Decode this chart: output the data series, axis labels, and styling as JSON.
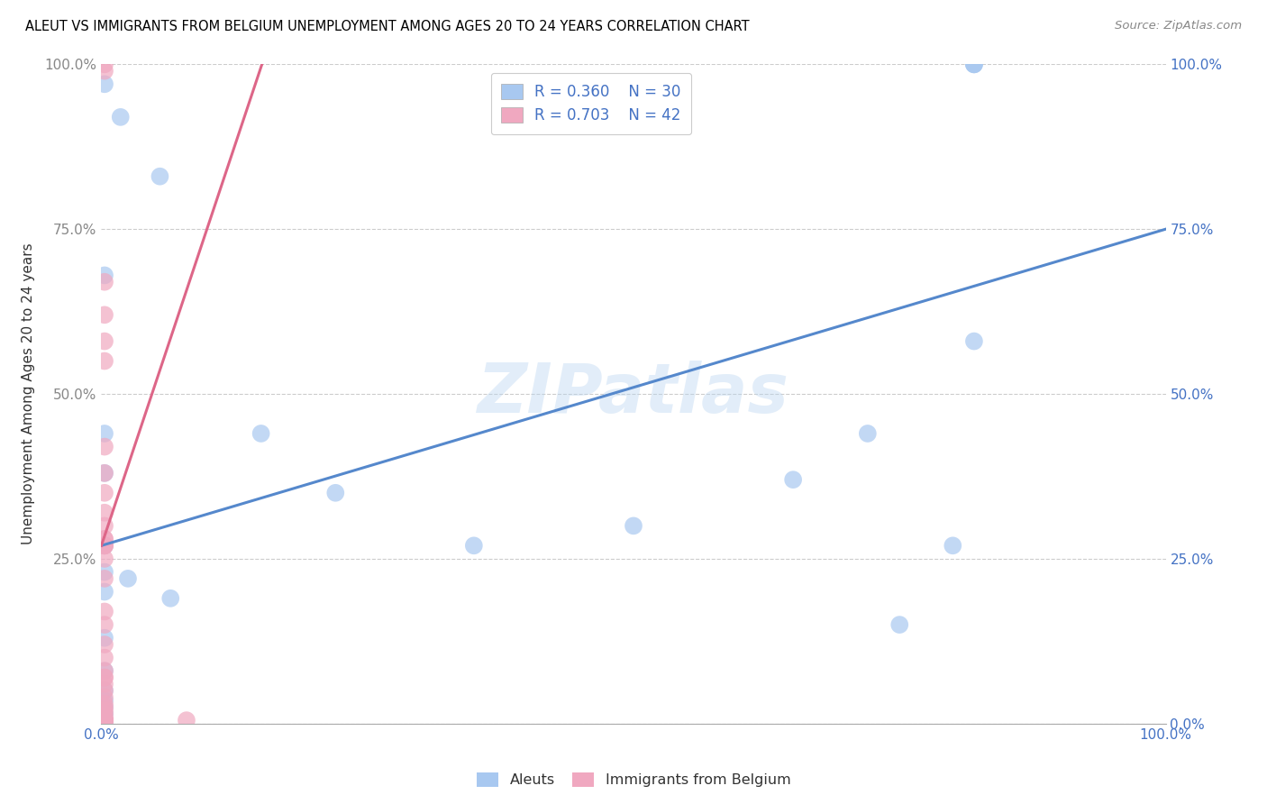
{
  "title": "ALEUT VS IMMIGRANTS FROM BELGIUM UNEMPLOYMENT AMONG AGES 20 TO 24 YEARS CORRELATION CHART",
  "source": "Source: ZipAtlas.com",
  "ylabel": "Unemployment Among Ages 20 to 24 years",
  "blue_R": "R = 0.360",
  "blue_N": "N = 30",
  "pink_R": "R = 0.703",
  "pink_N": "N = 42",
  "blue_color": "#A8C8F0",
  "pink_color": "#F0A8C0",
  "blue_line_color": "#5588CC",
  "pink_line_color": "#DD6688",
  "watermark": "ZIPatlas",
  "blue_scatter_x": [
    0.003,
    0.018,
    0.003,
    0.055,
    0.003,
    0.003,
    0.003,
    0.003,
    0.003,
    0.003,
    0.003,
    0.003,
    0.003,
    0.003,
    0.003,
    0.003,
    0.025,
    0.065,
    0.15,
    0.22,
    0.35,
    0.5,
    0.65,
    0.72,
    0.75,
    0.8,
    0.82,
    0.82,
    0.82,
    0.82
  ],
  "blue_scatter_y": [
    0.97,
    0.92,
    0.68,
    0.83,
    0.44,
    0.38,
    0.27,
    0.23,
    0.2,
    0.13,
    0.08,
    0.05,
    0.035,
    0.025,
    0.015,
    0.0,
    0.22,
    0.19,
    0.44,
    0.35,
    0.27,
    0.3,
    0.37,
    0.44,
    0.15,
    0.27,
    0.58,
    1.0,
    1.0,
    1.0
  ],
  "pink_scatter_x": [
    0.003,
    0.003,
    0.003,
    0.003,
    0.003,
    0.003,
    0.003,
    0.003,
    0.003,
    0.003,
    0.003,
    0.003,
    0.003,
    0.003,
    0.003,
    0.003,
    0.003,
    0.003,
    0.003,
    0.003,
    0.003,
    0.003,
    0.003,
    0.003,
    0.003,
    0.003,
    0.003,
    0.003,
    0.003,
    0.003,
    0.003,
    0.003,
    0.003,
    0.003,
    0.003,
    0.003,
    0.003,
    0.003,
    0.003,
    0.003,
    0.003,
    0.08
  ],
  "pink_scatter_y": [
    1.0,
    0.99,
    0.67,
    0.62,
    0.58,
    0.55,
    0.42,
    0.38,
    0.35,
    0.32,
    0.3,
    0.28,
    0.28,
    0.27,
    0.27,
    0.27,
    0.25,
    0.22,
    0.17,
    0.15,
    0.12,
    0.1,
    0.08,
    0.07,
    0.06,
    0.05,
    0.04,
    0.03,
    0.025,
    0.02,
    0.015,
    0.01,
    0.005,
    0.005,
    0.005,
    0.005,
    0.005,
    0.005,
    0.005,
    0.005,
    0.07,
    0.005
  ],
  "blue_line_x": [
    0.0,
    1.0
  ],
  "blue_line_y": [
    0.27,
    0.75
  ],
  "pink_line_x": [
    0.0,
    0.155
  ],
  "pink_line_y": [
    0.27,
    1.02
  ],
  "xlim": [
    0.0,
    1.0
  ],
  "ylim": [
    0.0,
    1.0
  ],
  "yticks": [
    0.0,
    0.25,
    0.5,
    0.75,
    1.0
  ],
  "xticks": [
    0.0,
    0.1,
    0.2,
    0.3,
    0.4,
    0.5,
    0.6,
    0.7,
    0.8,
    0.9,
    1.0
  ]
}
